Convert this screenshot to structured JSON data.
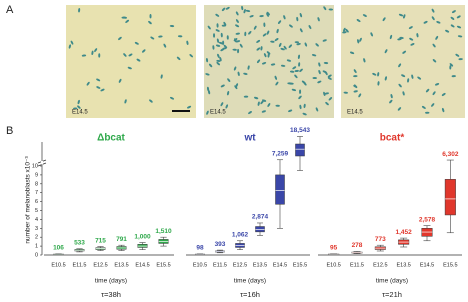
{
  "panel_labels": [
    "A",
    "B"
  ],
  "images": [
    {
      "label": "E14.5"
    },
    {
      "label": "E14.5"
    },
    {
      "label": "E14.5"
    }
  ],
  "chart_data": [
    {
      "type": "box",
      "title": "Δbcat",
      "color": "#2ea84a",
      "xlabel": "time (days)",
      "annotation": "τ=38h",
      "ylabel": "number of melanoblasts x10⁻³",
      "ylim": [
        0,
        30
      ],
      "y_break": 10,
      "yticks": [
        0,
        1,
        2,
        3,
        4,
        5,
        6,
        7,
        8,
        9,
        10
      ],
      "categories": [
        "E10.5",
        "E11.5",
        "E12.5",
        "E13.5",
        "E14.5",
        "E15.5"
      ],
      "values": [
        0.106,
        0.533,
        0.715,
        0.791,
        1.0,
        1.51
      ],
      "value_labels": [
        "106",
        "533",
        "715",
        "791",
        "1,000",
        "1,510"
      ],
      "q1": [
        0.08,
        0.45,
        0.62,
        0.65,
        0.85,
        1.3
      ],
      "q3": [
        0.13,
        0.62,
        0.82,
        0.95,
        1.2,
        1.75
      ],
      "whisker_low": [
        0.05,
        0.35,
        0.5,
        0.5,
        0.6,
        1.0
      ],
      "whisker_high": [
        0.16,
        0.7,
        0.95,
        1.1,
        1.4,
        2.0
      ]
    },
    {
      "type": "box",
      "title": "wt",
      "color": "#3a46a8",
      "xlabel": "time (days)",
      "annotation": "τ=16h",
      "categories": [
        "E10.5",
        "E11.5",
        "E12.5",
        "E13.5",
        "E14.5",
        "E15.5"
      ],
      "values": [
        0.098,
        0.393,
        1.062,
        2.874,
        7.259,
        18.543
      ],
      "value_labels": [
        "98",
        "393",
        "1,062",
        "2,874",
        "7,259",
        "18,543"
      ],
      "q1": [
        0.07,
        0.33,
        0.85,
        2.6,
        5.7,
        14
      ],
      "q3": [
        0.12,
        0.46,
        1.3,
        3.2,
        9.0,
        22
      ],
      "whisker_low": [
        0.05,
        0.25,
        0.6,
        2.2,
        3.0,
        9.5
      ],
      "whisker_high": [
        0.15,
        0.55,
        1.6,
        3.6,
        11.5,
        27
      ]
    },
    {
      "type": "box",
      "title": "bcat*",
      "color": "#e0372c",
      "xlabel": "time (days)",
      "annotation": "τ=21h",
      "categories": [
        "E10.5",
        "E11.5",
        "E12.5",
        "E13.5",
        "E14.5",
        "E15.5"
      ],
      "values": [
        0.095,
        0.278,
        0.773,
        1.452,
        2.578,
        6.302
      ],
      "value_labels": [
        "95",
        "278",
        "773",
        "1,452",
        "2,578",
        "6,302"
      ],
      "q1": [
        0.07,
        0.22,
        0.62,
        1.2,
        2.1,
        4.5
      ],
      "q3": [
        0.12,
        0.33,
        0.92,
        1.7,
        3.0,
        8.5
      ],
      "whisker_low": [
        0.04,
        0.15,
        0.45,
        0.9,
        1.6,
        2.5
      ],
      "whisker_high": [
        0.15,
        0.4,
        1.1,
        1.9,
        3.3,
        11.3
      ]
    }
  ]
}
